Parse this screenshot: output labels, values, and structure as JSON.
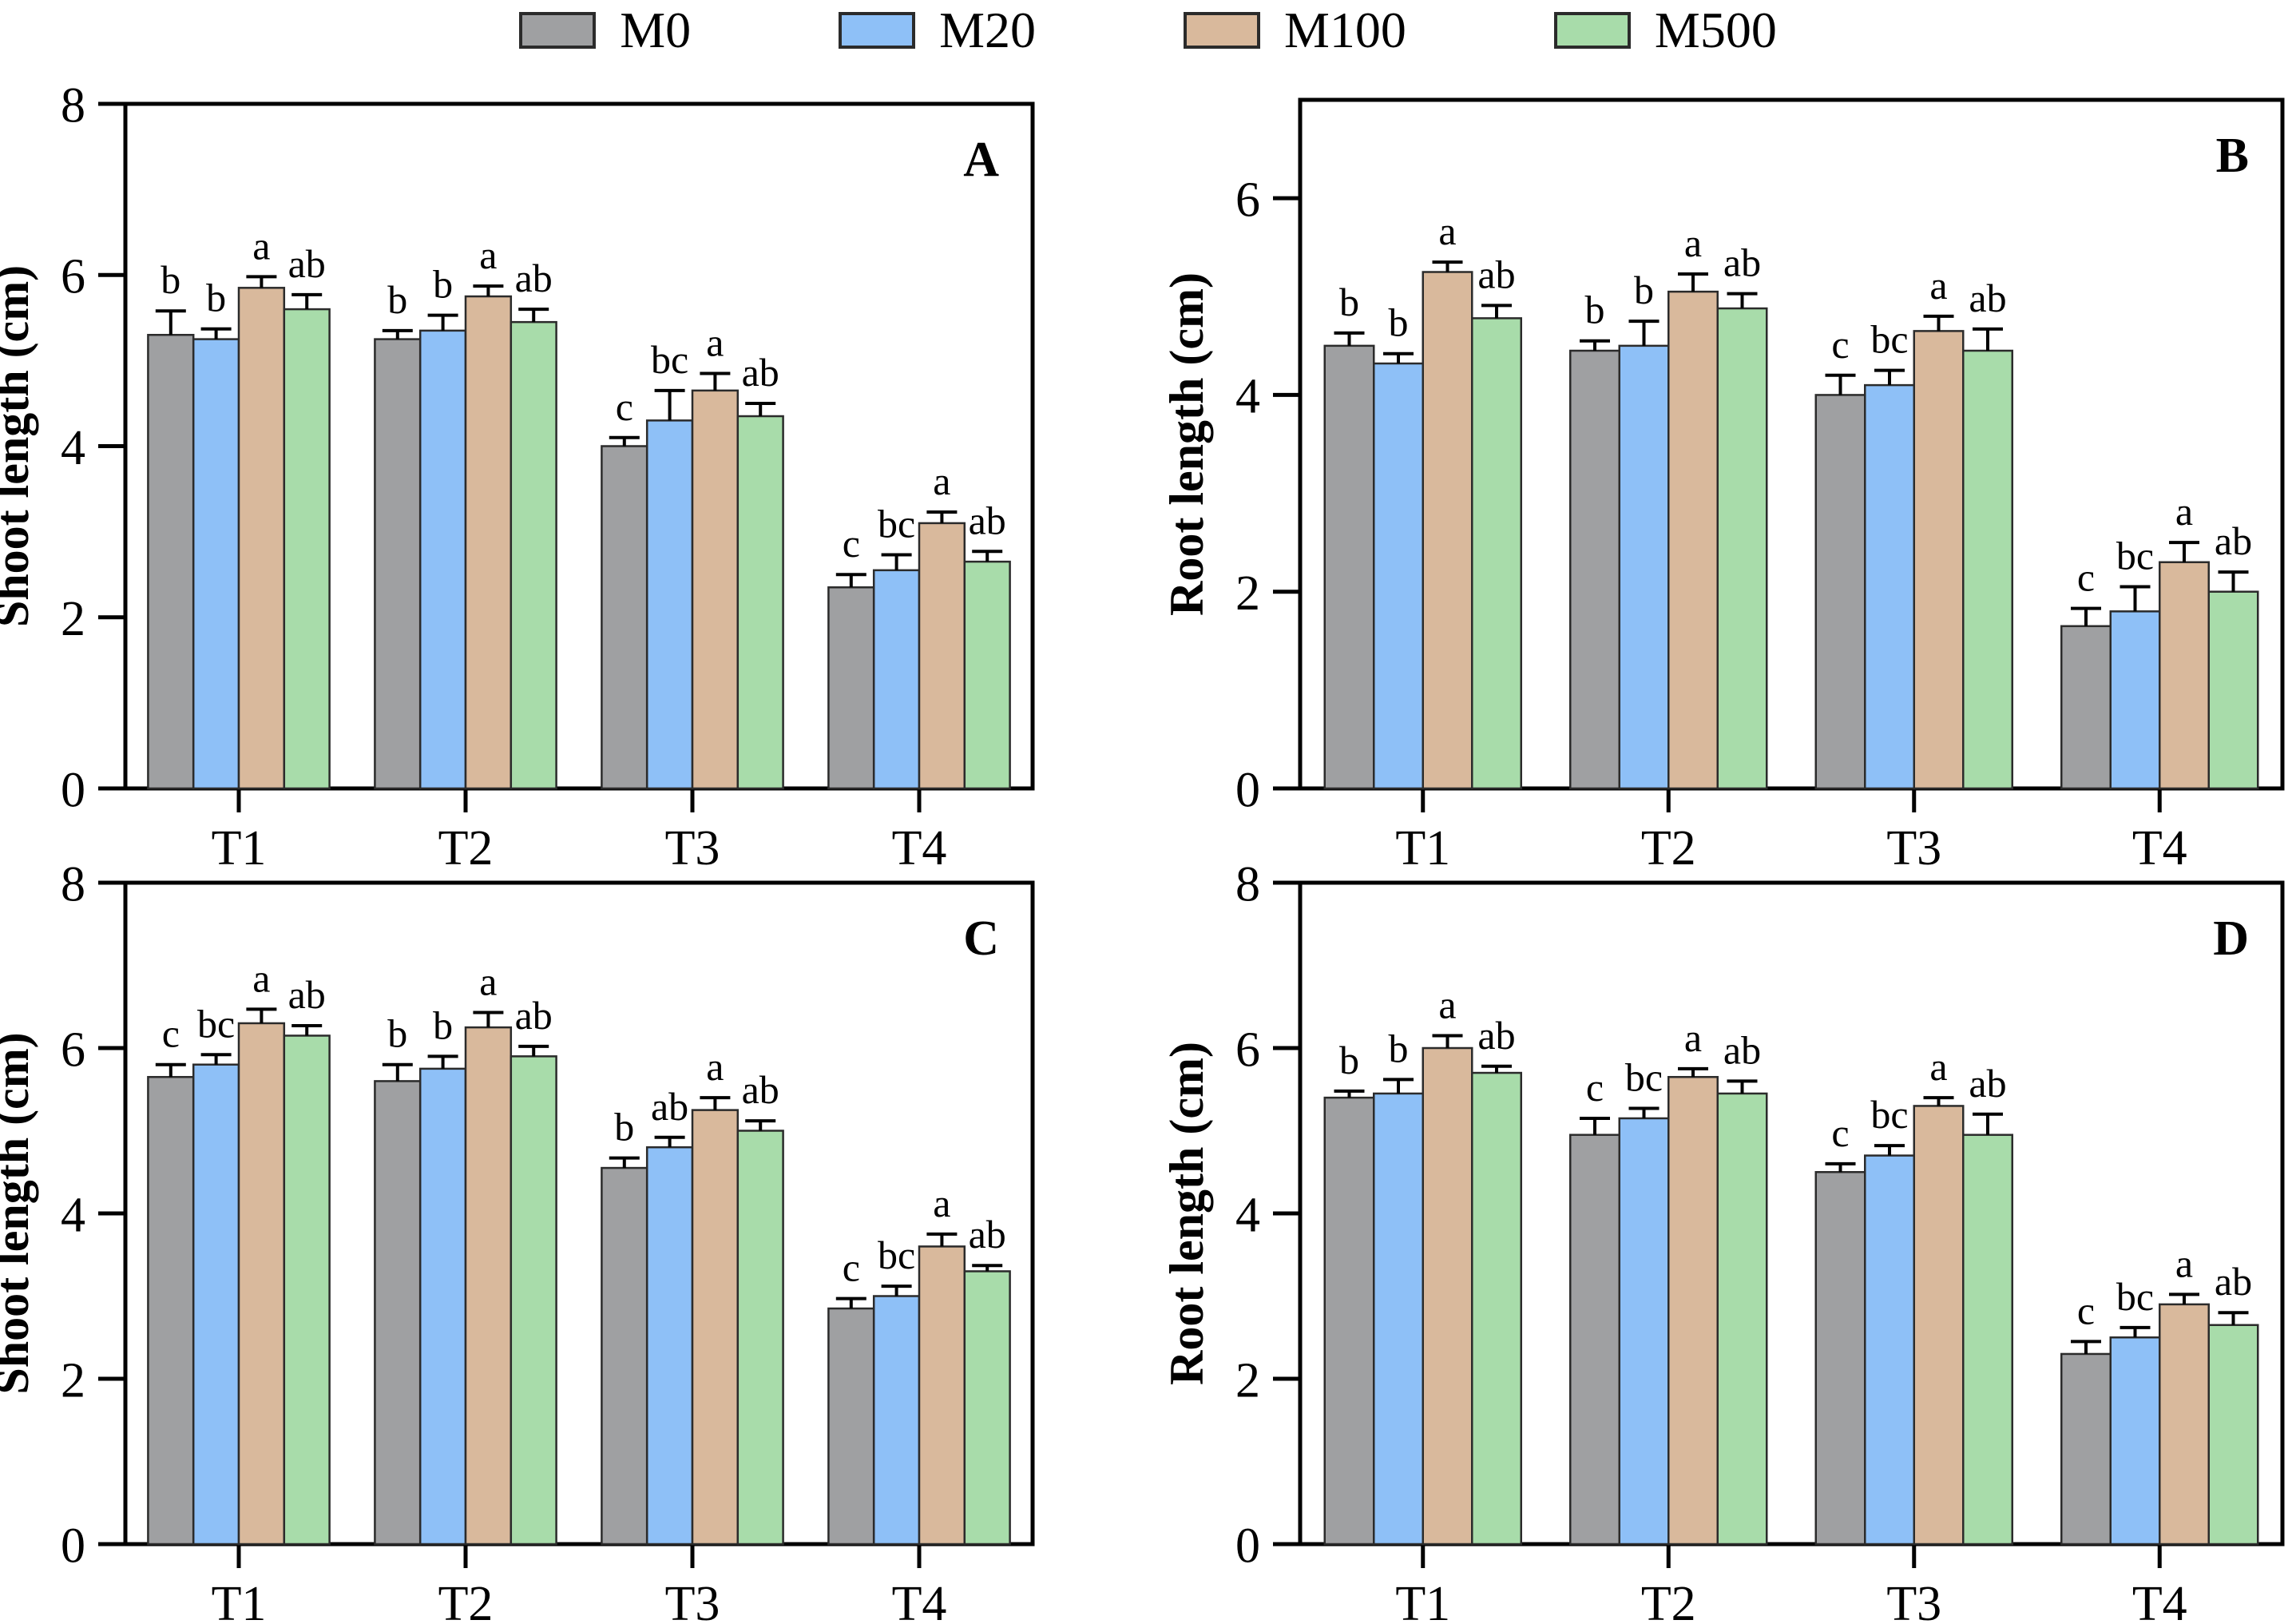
{
  "legend": {
    "items": [
      {
        "label": "M0",
        "color": "#9fa0a2"
      },
      {
        "label": "M20",
        "color": "#8ec0f7"
      },
      {
        "label": "M100",
        "color": "#d9b99c"
      },
      {
        "label": "M500",
        "color": "#a8dcaa"
      }
    ]
  },
  "colors": {
    "bar_edge": "#2b2b2b",
    "axis": "#000000",
    "error_bar": "#000000"
  },
  "chart_data": [
    {
      "type": "bar",
      "panel_label": "A",
      "ylabel": "Shoot length (cm)",
      "ylim": [
        0,
        8
      ],
      "yticks": [
        0,
        2,
        4,
        6,
        8
      ],
      "categories": [
        "T1",
        "T2",
        "T3",
        "T4"
      ],
      "series": [
        {
          "name": "M0",
          "values": [
            5.3,
            5.25,
            4.0,
            2.35
          ],
          "errors": [
            0.28,
            0.1,
            0.1,
            0.15
          ],
          "letters": [
            "b",
            "b",
            "c",
            "c"
          ]
        },
        {
          "name": "M20",
          "values": [
            5.25,
            5.35,
            4.3,
            2.55
          ],
          "errors": [
            0.12,
            0.18,
            0.35,
            0.18
          ],
          "letters": [
            "b",
            "b",
            "bc",
            "bc"
          ]
        },
        {
          "name": "M100",
          "values": [
            5.85,
            5.75,
            4.65,
            3.1
          ],
          "errors": [
            0.13,
            0.12,
            0.2,
            0.13
          ],
          "letters": [
            "a",
            "a",
            "a",
            "a"
          ]
        },
        {
          "name": "M500",
          "values": [
            5.6,
            5.45,
            4.35,
            2.65
          ],
          "errors": [
            0.17,
            0.15,
            0.15,
            0.12
          ],
          "letters": [
            "ab",
            "ab",
            "ab",
            "ab"
          ]
        }
      ]
    },
    {
      "type": "bar",
      "panel_label": "B",
      "ylabel": "Root length (cm)",
      "ylim": [
        0,
        7
      ],
      "yticks": [
        0,
        2,
        4,
        6
      ],
      "categories": [
        "T1",
        "T2",
        "T3",
        "T4"
      ],
      "series": [
        {
          "name": "M0",
          "values": [
            4.5,
            4.45,
            4.0,
            1.65
          ],
          "errors": [
            0.13,
            0.1,
            0.2,
            0.18
          ],
          "letters": [
            "b",
            "b",
            "c",
            "c"
          ]
        },
        {
          "name": "M20",
          "values": [
            4.32,
            4.5,
            4.1,
            1.8
          ],
          "errors": [
            0.1,
            0.25,
            0.15,
            0.25
          ],
          "letters": [
            "b",
            "b",
            "bc",
            "bc"
          ]
        },
        {
          "name": "M100",
          "values": [
            5.25,
            5.05,
            4.65,
            2.3
          ],
          "errors": [
            0.1,
            0.18,
            0.15,
            0.2
          ],
          "letters": [
            "a",
            "a",
            "a",
            "a"
          ]
        },
        {
          "name": "M500",
          "values": [
            4.78,
            4.88,
            4.45,
            2.0
          ],
          "errors": [
            0.13,
            0.15,
            0.22,
            0.2
          ],
          "letters": [
            "ab",
            "ab",
            "ab",
            "ab"
          ]
        }
      ]
    },
    {
      "type": "bar",
      "panel_label": "C",
      "ylabel": "Shoot length (cm)",
      "ylim": [
        0,
        8
      ],
      "yticks": [
        0,
        2,
        4,
        6,
        8
      ],
      "categories": [
        "T1",
        "T2",
        "T3",
        "T4"
      ],
      "series": [
        {
          "name": "M0",
          "values": [
            5.65,
            5.6,
            4.55,
            2.85
          ],
          "errors": [
            0.15,
            0.2,
            0.12,
            0.12
          ],
          "letters": [
            "c",
            "b",
            "b",
            "c"
          ]
        },
        {
          "name": "M20",
          "values": [
            5.8,
            5.75,
            4.8,
            3.0
          ],
          "errors": [
            0.12,
            0.15,
            0.12,
            0.12
          ],
          "letters": [
            "bc",
            "b",
            "ab",
            "bc"
          ]
        },
        {
          "name": "M100",
          "values": [
            6.3,
            6.25,
            5.25,
            3.6
          ],
          "errors": [
            0.17,
            0.18,
            0.15,
            0.15
          ],
          "letters": [
            "a",
            "a",
            "a",
            "a"
          ]
        },
        {
          "name": "M500",
          "values": [
            6.15,
            5.9,
            5.0,
            3.3
          ],
          "errors": [
            0.12,
            0.12,
            0.12,
            0.07
          ],
          "letters": [
            "ab",
            "ab",
            "ab",
            "ab"
          ]
        }
      ]
    },
    {
      "type": "bar",
      "panel_label": "D",
      "ylabel": "Root length (cm)",
      "ylim": [
        0,
        8
      ],
      "yticks": [
        0,
        2,
        4,
        6,
        8
      ],
      "categories": [
        "T1",
        "T2",
        "T3",
        "T4"
      ],
      "series": [
        {
          "name": "M0",
          "values": [
            5.4,
            4.95,
            4.5,
            2.3
          ],
          "errors": [
            0.08,
            0.2,
            0.1,
            0.15
          ],
          "letters": [
            "b",
            "c",
            "c",
            "c"
          ]
        },
        {
          "name": "M20",
          "values": [
            5.45,
            5.15,
            4.7,
            2.5
          ],
          "errors": [
            0.17,
            0.12,
            0.12,
            0.12
          ],
          "letters": [
            "b",
            "bc",
            "bc",
            "bc"
          ]
        },
        {
          "name": "M100",
          "values": [
            6.0,
            5.65,
            5.3,
            2.9
          ],
          "errors": [
            0.15,
            0.1,
            0.1,
            0.12
          ],
          "letters": [
            "a",
            "a",
            "a",
            "a"
          ]
        },
        {
          "name": "M500",
          "values": [
            5.7,
            5.45,
            4.95,
            2.65
          ],
          "errors": [
            0.08,
            0.15,
            0.25,
            0.15
          ],
          "letters": [
            "ab",
            "ab",
            "ab",
            "ab"
          ]
        }
      ]
    }
  ]
}
